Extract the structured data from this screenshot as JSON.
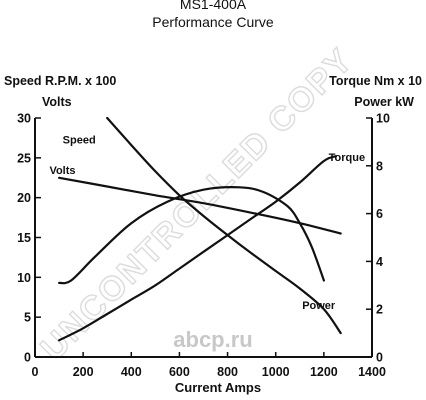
{
  "chart_data": {
    "type": "line",
    "title": "MS1-400A",
    "subtitle": "Performance Curve",
    "xlabel": "Current Amps",
    "ylabel_left_line1": "Speed R.P.M. x 100",
    "ylabel_left_line2": "Volts",
    "ylabel_right_line1": "Torque Nm x 10",
    "ylabel_right_line2": "Power kW",
    "xlim": [
      0,
      1400
    ],
    "ylim_left": [
      0,
      30
    ],
    "ylim_right": [
      0,
      10
    ],
    "x_ticks": [
      0,
      200,
      400,
      600,
      800,
      1000,
      1200,
      1400
    ],
    "y_left_ticks": [
      0,
      5,
      10,
      15,
      20,
      25,
      30
    ],
    "y_right_ticks": [
      0,
      2,
      4,
      6,
      8,
      10
    ],
    "grid": false,
    "series": [
      {
        "name": "Speed",
        "axis": "left",
        "x": [
          300,
          400,
          500,
          600,
          700,
          800,
          900,
          1000,
          1100,
          1200,
          1270
        ],
        "y": [
          30,
          26.6,
          23.3,
          20.3,
          17.7,
          15.3,
          13.0,
          10.8,
          8.6,
          6.0,
          3.0
        ]
      },
      {
        "name": "Volts",
        "axis": "left",
        "x": [
          100,
          300,
          500,
          700,
          900,
          1100,
          1270
        ],
        "y": [
          22.5,
          21.4,
          20.3,
          19.3,
          18.1,
          16.8,
          15.5
        ]
      },
      {
        "name": "Torque",
        "axis": "right",
        "x": [
          100,
          200,
          300,
          400,
          500,
          600,
          700,
          800,
          900,
          1000,
          1100,
          1200,
          1250
        ],
        "y": [
          0.7,
          1.2,
          1.8,
          2.4,
          3.0,
          3.7,
          4.4,
          5.1,
          5.8,
          6.5,
          7.3,
          8.2,
          8.4
        ]
      },
      {
        "name": "Power",
        "axis": "right",
        "x": [
          100,
          150,
          250,
          400,
          550,
          700,
          850,
          950,
          1050,
          1100,
          1150,
          1200
        ],
        "y": [
          3.1,
          3.2,
          4.2,
          5.6,
          6.5,
          7.0,
          7.1,
          6.9,
          6.3,
          5.6,
          4.6,
          3.2
        ]
      }
    ],
    "series_labels": [
      "Speed",
      "Volts",
      "Torque",
      "Power"
    ],
    "watermark": "UNCONTROLLED COPY",
    "logo_text": "abcp.ru"
  }
}
